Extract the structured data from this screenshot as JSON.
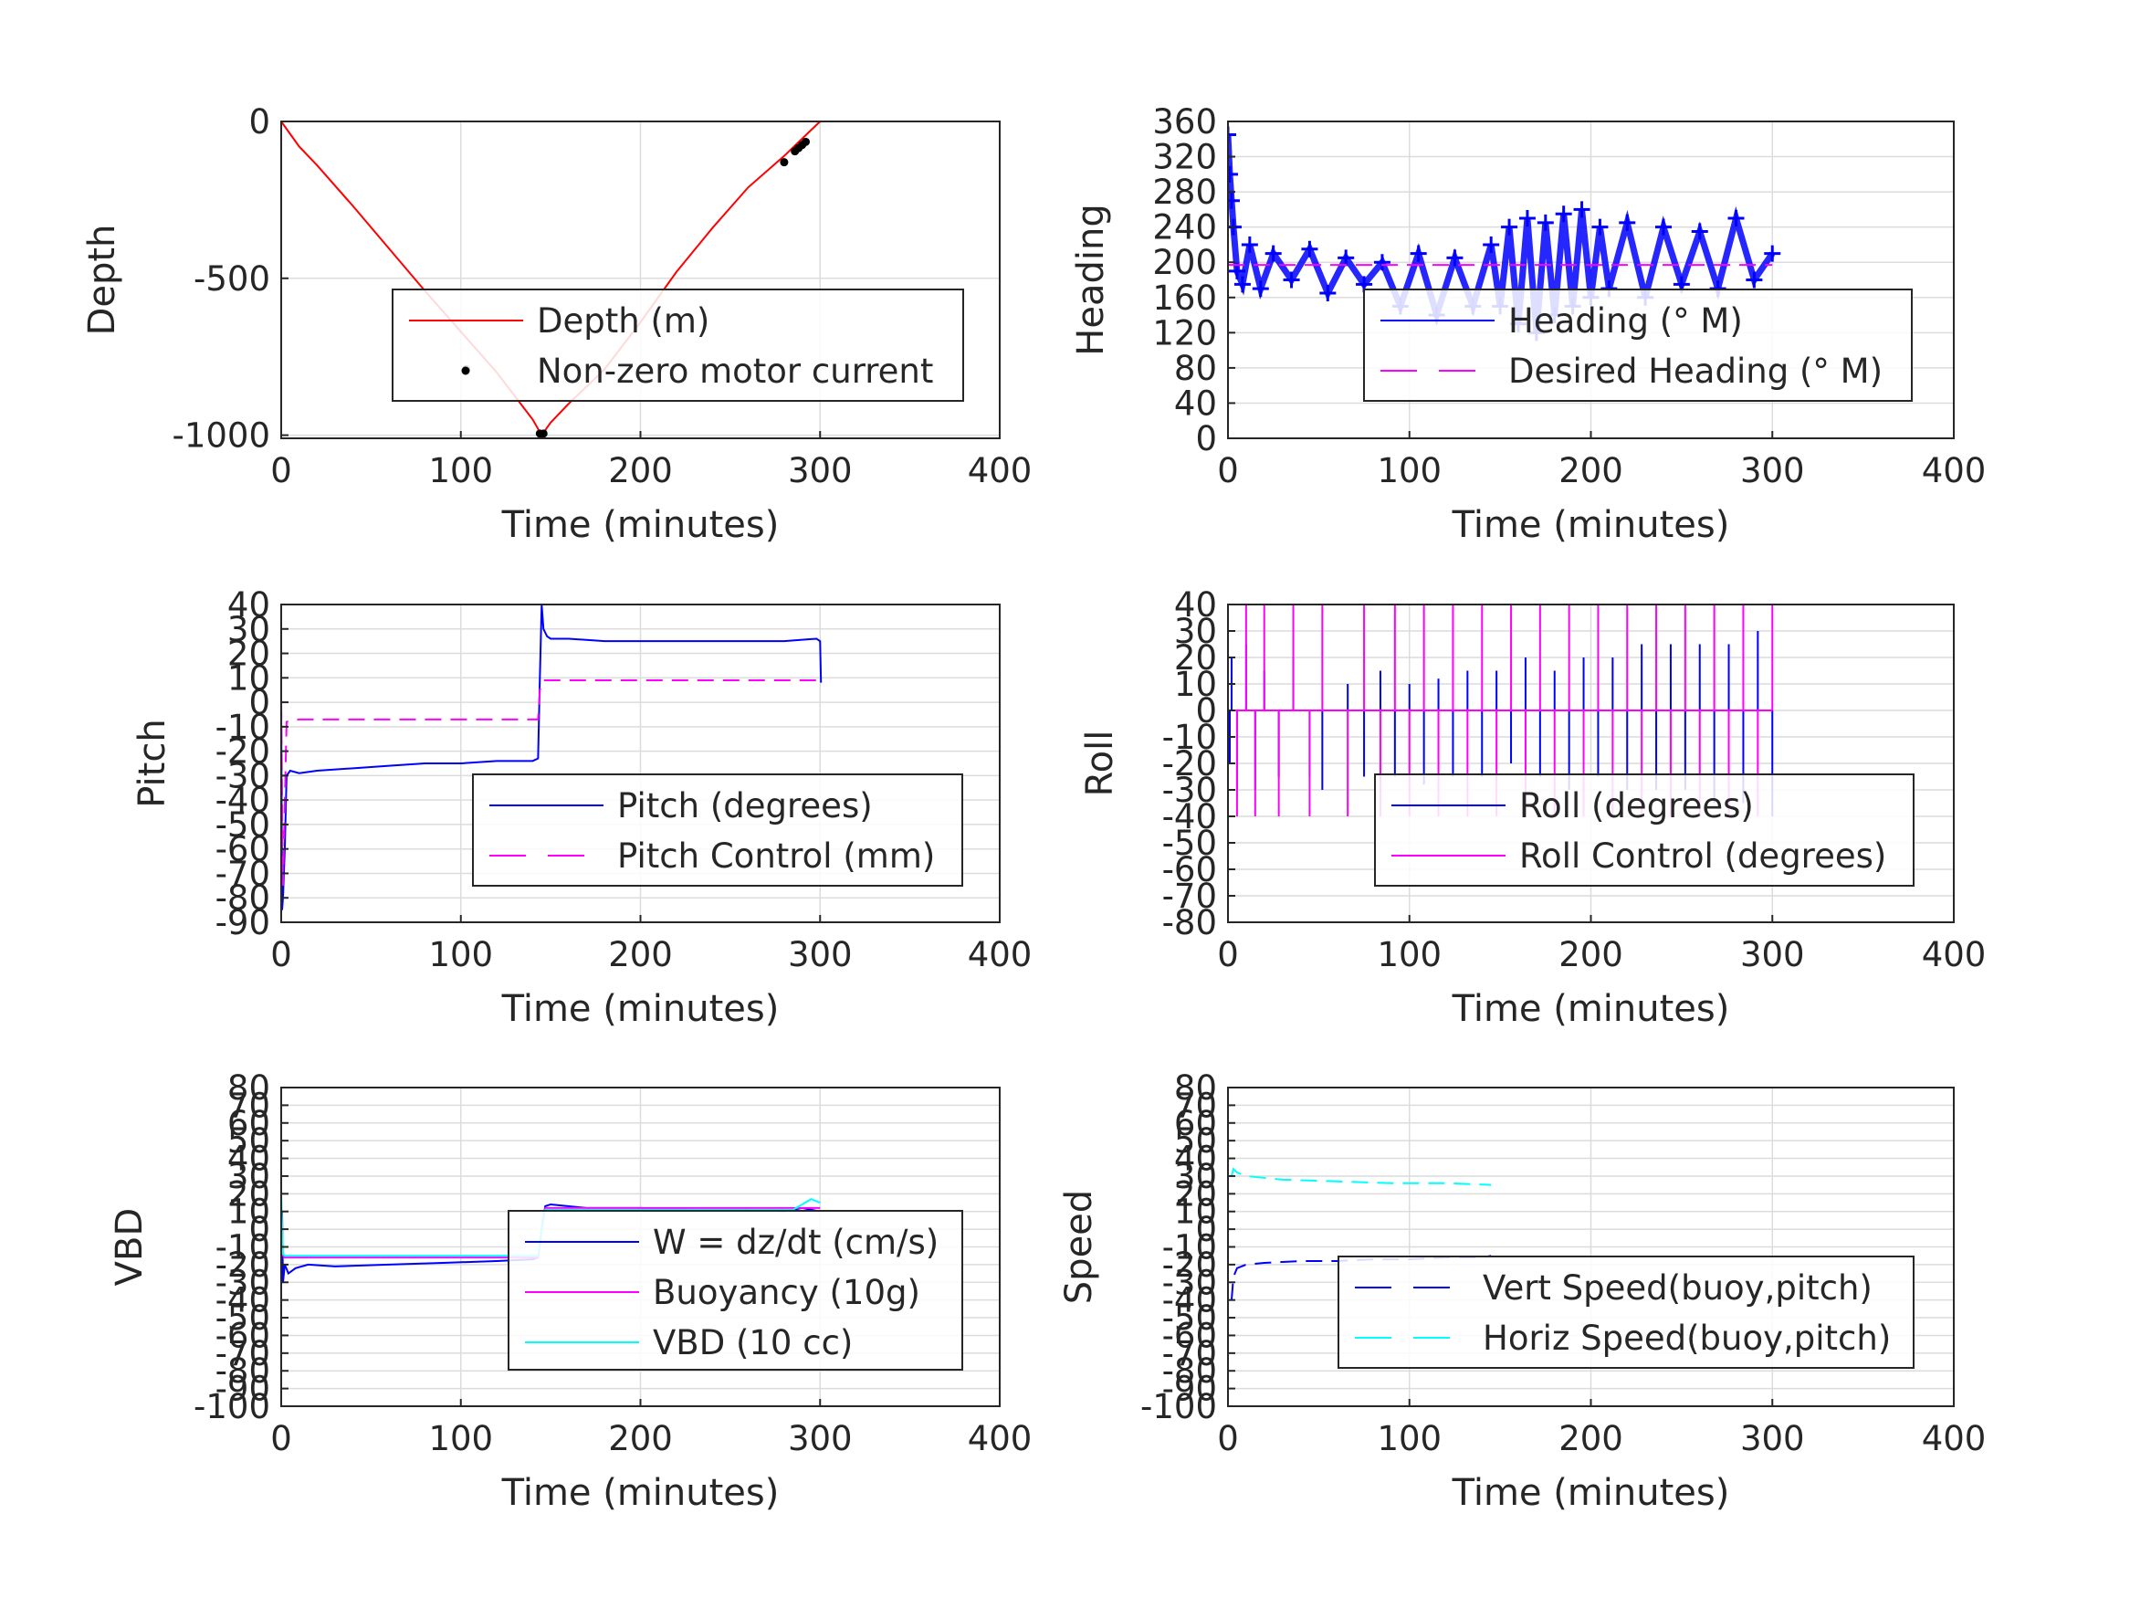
{
  "chart_data": [
    {
      "id": "depth",
      "type": "line",
      "xlabel": "Time (minutes)",
      "ylabel": "Depth",
      "xlim": [
        0,
        400
      ],
      "ylim": [
        -1010,
        0
      ],
      "xticks": [
        0,
        100,
        200,
        300,
        400
      ],
      "yticks": [
        -1000,
        -500,
        0
      ],
      "xtick_labels": [
        "0",
        "100",
        "200",
        "300",
        "400"
      ],
      "ytick_labels": [
        "-1000",
        "-500",
        "0"
      ],
      "grid": true,
      "legend": "bottom-right",
      "series": [
        {
          "name": "Depth (m)",
          "color": "#ff0000",
          "style": "solid",
          "x": [
            0,
            5,
            10,
            20,
            40,
            60,
            80,
            100,
            120,
            140,
            145,
            150,
            160,
            180,
            200,
            220,
            240,
            260,
            280,
            290,
            300
          ],
          "y": [
            0,
            -40,
            -80,
            -140,
            -270,
            -405,
            -540,
            -670,
            -800,
            -950,
            -1000,
            -960,
            -900,
            -790,
            -640,
            -480,
            -340,
            -210,
            -110,
            -55,
            0
          ]
        },
        {
          "name": "Non-zero motor current",
          "color": "#000000",
          "style": "markers",
          "x": [
            103,
            144,
            145,
            146,
            280,
            286,
            288,
            290,
            292
          ],
          "y": [
            -790,
            -995,
            -998,
            -995,
            -130,
            -95,
            -85,
            -75,
            -65
          ]
        }
      ]
    },
    {
      "id": "heading",
      "type": "line",
      "xlabel": "Time (minutes)",
      "ylabel": "Heading",
      "xlim": [
        0,
        400
      ],
      "ylim": [
        0,
        360
      ],
      "xticks": [
        0,
        100,
        200,
        300,
        400
      ],
      "yticks": [
        0,
        40,
        80,
        120,
        160,
        200,
        240,
        280,
        320,
        360
      ],
      "xtick_labels": [
        "0",
        "100",
        "200",
        "300",
        "400"
      ],
      "ytick_labels": [
        "0",
        "40",
        "80",
        "120",
        "160",
        "200",
        "240",
        "280",
        "320",
        "360"
      ],
      "grid": true,
      "legend": "bottom-right",
      "series": [
        {
          "name": "Heading (° M)",
          "color": "#0000ff",
          "style": "plus-markers",
          "x": [
            0,
            1,
            2,
            3,
            5,
            8,
            12,
            18,
            25,
            35,
            45,
            55,
            65,
            75,
            85,
            95,
            105,
            115,
            125,
            135,
            145,
            150,
            155,
            160,
            165,
            170,
            175,
            180,
            185,
            190,
            195,
            200,
            205,
            210,
            220,
            230,
            240,
            250,
            260,
            270,
            280,
            290,
            300
          ],
          "y": [
            345,
            300,
            270,
            240,
            190,
            175,
            220,
            170,
            210,
            180,
            215,
            165,
            205,
            175,
            200,
            150,
            210,
            140,
            205,
            150,
            220,
            150,
            240,
            130,
            250,
            120,
            245,
            140,
            255,
            150,
            260,
            160,
            240,
            170,
            245,
            160,
            240,
            175,
            235,
            170,
            250,
            180,
            210
          ]
        },
        {
          "name": "Desired Heading (° M)",
          "color": "#ff00ff",
          "style": "dashed",
          "x": [
            0,
            300
          ],
          "y": [
            197,
            197
          ]
        }
      ]
    },
    {
      "id": "pitch",
      "type": "line",
      "xlabel": "Time (minutes)",
      "ylabel": "Pitch",
      "xlim": [
        0,
        400
      ],
      "ylim": [
        -90,
        40
      ],
      "xticks": [
        0,
        100,
        200,
        300,
        400
      ],
      "yticks": [
        -90,
        -80,
        -70,
        -60,
        -50,
        -40,
        -30,
        -20,
        -10,
        0,
        10,
        20,
        30,
        40
      ],
      "xtick_labels": [
        "0",
        "100",
        "200",
        "300",
        "400"
      ],
      "ytick_labels": [
        "-90",
        "-80",
        "-70",
        "-60",
        "-50",
        "-40",
        "-30",
        "-20",
        "-10",
        "0",
        "10",
        "20",
        "30",
        "40"
      ],
      "grid": true,
      "legend": "bottom-right",
      "series": [
        {
          "name": "Pitch (degrees)",
          "color": "#0000ff",
          "style": "solid",
          "x": [
            0,
            0.5,
            1,
            2,
            3,
            5,
            10,
            20,
            40,
            60,
            80,
            100,
            120,
            140,
            143,
            144,
            145,
            146,
            148,
            150,
            160,
            180,
            200,
            220,
            240,
            260,
            280,
            298,
            300,
            300.5
          ],
          "y": [
            0,
            -85,
            -80,
            -60,
            -30,
            -28,
            -29,
            -28,
            -27,
            -26,
            -25,
            -25,
            -24,
            -24,
            -23,
            10,
            40,
            30,
            27,
            26,
            26,
            25,
            25,
            25,
            25,
            25,
            25,
            26,
            25,
            8
          ]
        },
        {
          "name": "Pitch Control (mm)",
          "color": "#ff00ff",
          "style": "dashed",
          "x": [
            0,
            1,
            3,
            10,
            60,
            100,
            143,
            144,
            146,
            200,
            250,
            300
          ],
          "y": [
            0,
            -75,
            -8,
            -7,
            -7,
            -7,
            -7,
            5,
            9,
            9,
            9,
            9
          ]
        }
      ]
    },
    {
      "id": "roll",
      "type": "line",
      "xlabel": "Time (minutes)",
      "ylabel": "Roll",
      "xlim": [
        0,
        400
      ],
      "ylim": [
        -80,
        40
      ],
      "xticks": [
        0,
        100,
        200,
        300,
        400
      ],
      "yticks": [
        -80,
        -70,
        -60,
        -50,
        -40,
        -30,
        -20,
        -10,
        0,
        10,
        20,
        30,
        40
      ],
      "xtick_labels": [
        "0",
        "100",
        "200",
        "300",
        "400"
      ],
      "ytick_labels": [
        "-80",
        "-70",
        "-60",
        "-50",
        "-40",
        "-30",
        "-20",
        "-10",
        "0",
        "10",
        "20",
        "30",
        "40"
      ],
      "grid": true,
      "legend": "bottom-right",
      "series": [
        {
          "name": "Roll (degrees)",
          "color": "#0000ff",
          "style": "spikes",
          "x": [
            0,
            1,
            2,
            5,
            10,
            15,
            20,
            28,
            36,
            45,
            52,
            66,
            75,
            84,
            92,
            100,
            108,
            116,
            124,
            132,
            140,
            148,
            156,
            164,
            172,
            180,
            188,
            196,
            204,
            212,
            220,
            228,
            236,
            244,
            252,
            260,
            268,
            276,
            284,
            292,
            300
          ],
          "y": [
            40,
            -20,
            20,
            -30,
            25,
            -30,
            15,
            -25,
            20,
            -25,
            -30,
            10,
            -25,
            15,
            -25,
            10,
            -28,
            12,
            -25,
            15,
            -25,
            15,
            -20,
            20,
            -25,
            15,
            -30,
            20,
            -25,
            20,
            -30,
            25,
            -30,
            25,
            -30,
            25,
            -35,
            25,
            -35,
            30,
            -40
          ]
        },
        {
          "name": "Roll Control (degrees)",
          "color": "#ff00ff",
          "style": "spikes",
          "x": [
            0,
            5,
            10,
            15,
            20,
            28,
            36,
            45,
            52,
            66,
            75,
            84,
            92,
            100,
            108,
            116,
            124,
            132,
            140,
            148,
            156,
            164,
            172,
            180,
            188,
            196,
            204,
            212,
            220,
            228,
            236,
            244,
            252,
            260,
            268,
            276,
            284,
            292,
            300
          ],
          "y": [
            40,
            -40,
            40,
            -40,
            40,
            -40,
            40,
            -40,
            40,
            -40,
            40,
            -40,
            40,
            -40,
            40,
            -40,
            40,
            -40,
            40,
            -40,
            40,
            -40,
            40,
            -40,
            40,
            -40,
            40,
            -40,
            40,
            -40,
            40,
            -40,
            40,
            -40,
            40,
            -40,
            40,
            -40,
            40
          ]
        }
      ]
    },
    {
      "id": "vbd",
      "type": "line",
      "xlabel": "Time (minutes)",
      "ylabel": "VBD",
      "xlim": [
        0,
        400
      ],
      "ylim": [
        -100,
        80
      ],
      "xticks": [
        0,
        100,
        200,
        300,
        400
      ],
      "yticks": [
        -100,
        -90,
        -80,
        -70,
        -60,
        -50,
        -40,
        -30,
        -20,
        -10,
        0,
        10,
        20,
        30,
        40,
        50,
        60,
        70,
        80
      ],
      "xtick_labels": [
        "0",
        "100",
        "200",
        "300",
        "400"
      ],
      "ytick_labels": [
        "-100",
        "-90",
        "-80",
        "-70",
        "-60",
        "-50",
        "-40",
        "-30",
        "-20",
        "-10",
        "0",
        "10",
        "20",
        "30",
        "40",
        "50",
        "60",
        "70",
        "80"
      ],
      "grid": true,
      "legend": "bottom-right",
      "series": [
        {
          "name": "W = dz/dt (cm/s)",
          "color": "#0000ff",
          "style": "solid",
          "x": [
            0,
            0.5,
            1,
            2,
            4,
            8,
            15,
            30,
            60,
            90,
            120,
            140,
            143,
            145,
            147,
            150,
            170,
            200,
            230,
            260,
            280,
            290,
            300
          ],
          "y": [
            0,
            10,
            -30,
            -20,
            -25,
            -22,
            -20,
            -21,
            -20,
            -19,
            -18,
            -17,
            -16,
            0,
            13,
            14,
            12,
            12,
            11,
            11,
            10,
            12,
            10
          ]
        },
        {
          "name": "Buoyancy (10g)",
          "color": "#ff00ff",
          "style": "solid",
          "x": [
            0,
            1,
            2,
            143,
            145,
            147,
            300
          ],
          "y": [
            0,
            -15,
            -16,
            -16,
            0,
            12,
            12
          ]
        },
        {
          "name": "VBD (10 cc)",
          "color": "#00ffff",
          "style": "solid",
          "x": [
            0,
            1,
            2,
            143,
            145,
            147,
            285,
            290,
            295,
            300
          ],
          "y": [
            20,
            -14,
            -15,
            -15,
            0,
            11,
            11,
            14,
            17,
            15
          ]
        }
      ]
    },
    {
      "id": "speed",
      "type": "line",
      "xlabel": "Time (minutes)",
      "ylabel": "Speed",
      "xlim": [
        0,
        400
      ],
      "ylim": [
        -100,
        80
      ],
      "xticks": [
        0,
        100,
        200,
        300,
        400
      ],
      "yticks": [
        -100,
        -90,
        -80,
        -70,
        -60,
        -50,
        -40,
        -30,
        -20,
        -10,
        0,
        10,
        20,
        30,
        40,
        50,
        60,
        70,
        80
      ],
      "xtick_labels": [
        "0",
        "100",
        "200",
        "300",
        "400"
      ],
      "ytick_labels": [
        "-100",
        "-90",
        "-80",
        "-70",
        "-60",
        "-50",
        "-40",
        "-30",
        "-20",
        "-10",
        "0",
        "10",
        "20",
        "30",
        "40",
        "50",
        "60",
        "70",
        "80"
      ],
      "grid": true,
      "legend": "bottom-right",
      "series": [
        {
          "name": "Vert Speed(buoy,pitch)",
          "color": "#0000ff",
          "style": "dashed",
          "x": [
            2,
            3,
            5,
            10,
            20,
            40,
            60,
            80,
            100,
            120,
            140,
            145
          ],
          "y": [
            -40,
            -27,
            -22,
            -20,
            -19,
            -18,
            -18,
            -17,
            -17,
            -16,
            -16,
            -15
          ]
        },
        {
          "name": "Horiz Speed(buoy,pitch)",
          "color": "#00ffff",
          "style": "dashed",
          "x": [
            2,
            3,
            5,
            10,
            30,
            60,
            90,
            120,
            145
          ],
          "y": [
            30,
            34,
            32,
            30,
            28,
            27,
            26,
            26,
            25
          ]
        }
      ]
    }
  ]
}
